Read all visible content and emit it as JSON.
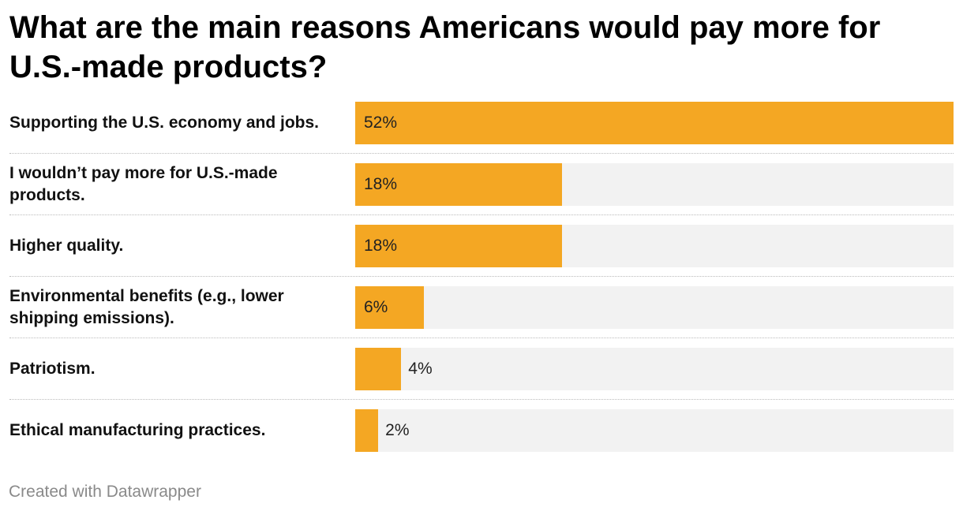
{
  "title": "What are the main reasons Americans would pay more for U.S.-made products?",
  "footer": "Created with Datawrapper",
  "colors": {
    "bar": "#f4a723",
    "track": "#f2f2f2"
  },
  "chart_data": {
    "type": "bar",
    "orientation": "horizontal",
    "title": "What are the main reasons Americans would pay more for U.S.-made products?",
    "xlabel": "",
    "ylabel": "",
    "xlim": [
      0,
      52
    ],
    "categories": [
      "Supporting the U.S. economy and jobs.",
      "I wouldn’t pay more for U.S.-made products.",
      "Higher quality.",
      "Environmental benefits (e.g., lower shipping emissions).",
      "Patriotism.",
      "Ethical manufacturing practices."
    ],
    "values": [
      52,
      18,
      18,
      6,
      4,
      2
    ],
    "value_labels": [
      "52%",
      "18%",
      "18%",
      "6%",
      "4%",
      "2%"
    ]
  }
}
